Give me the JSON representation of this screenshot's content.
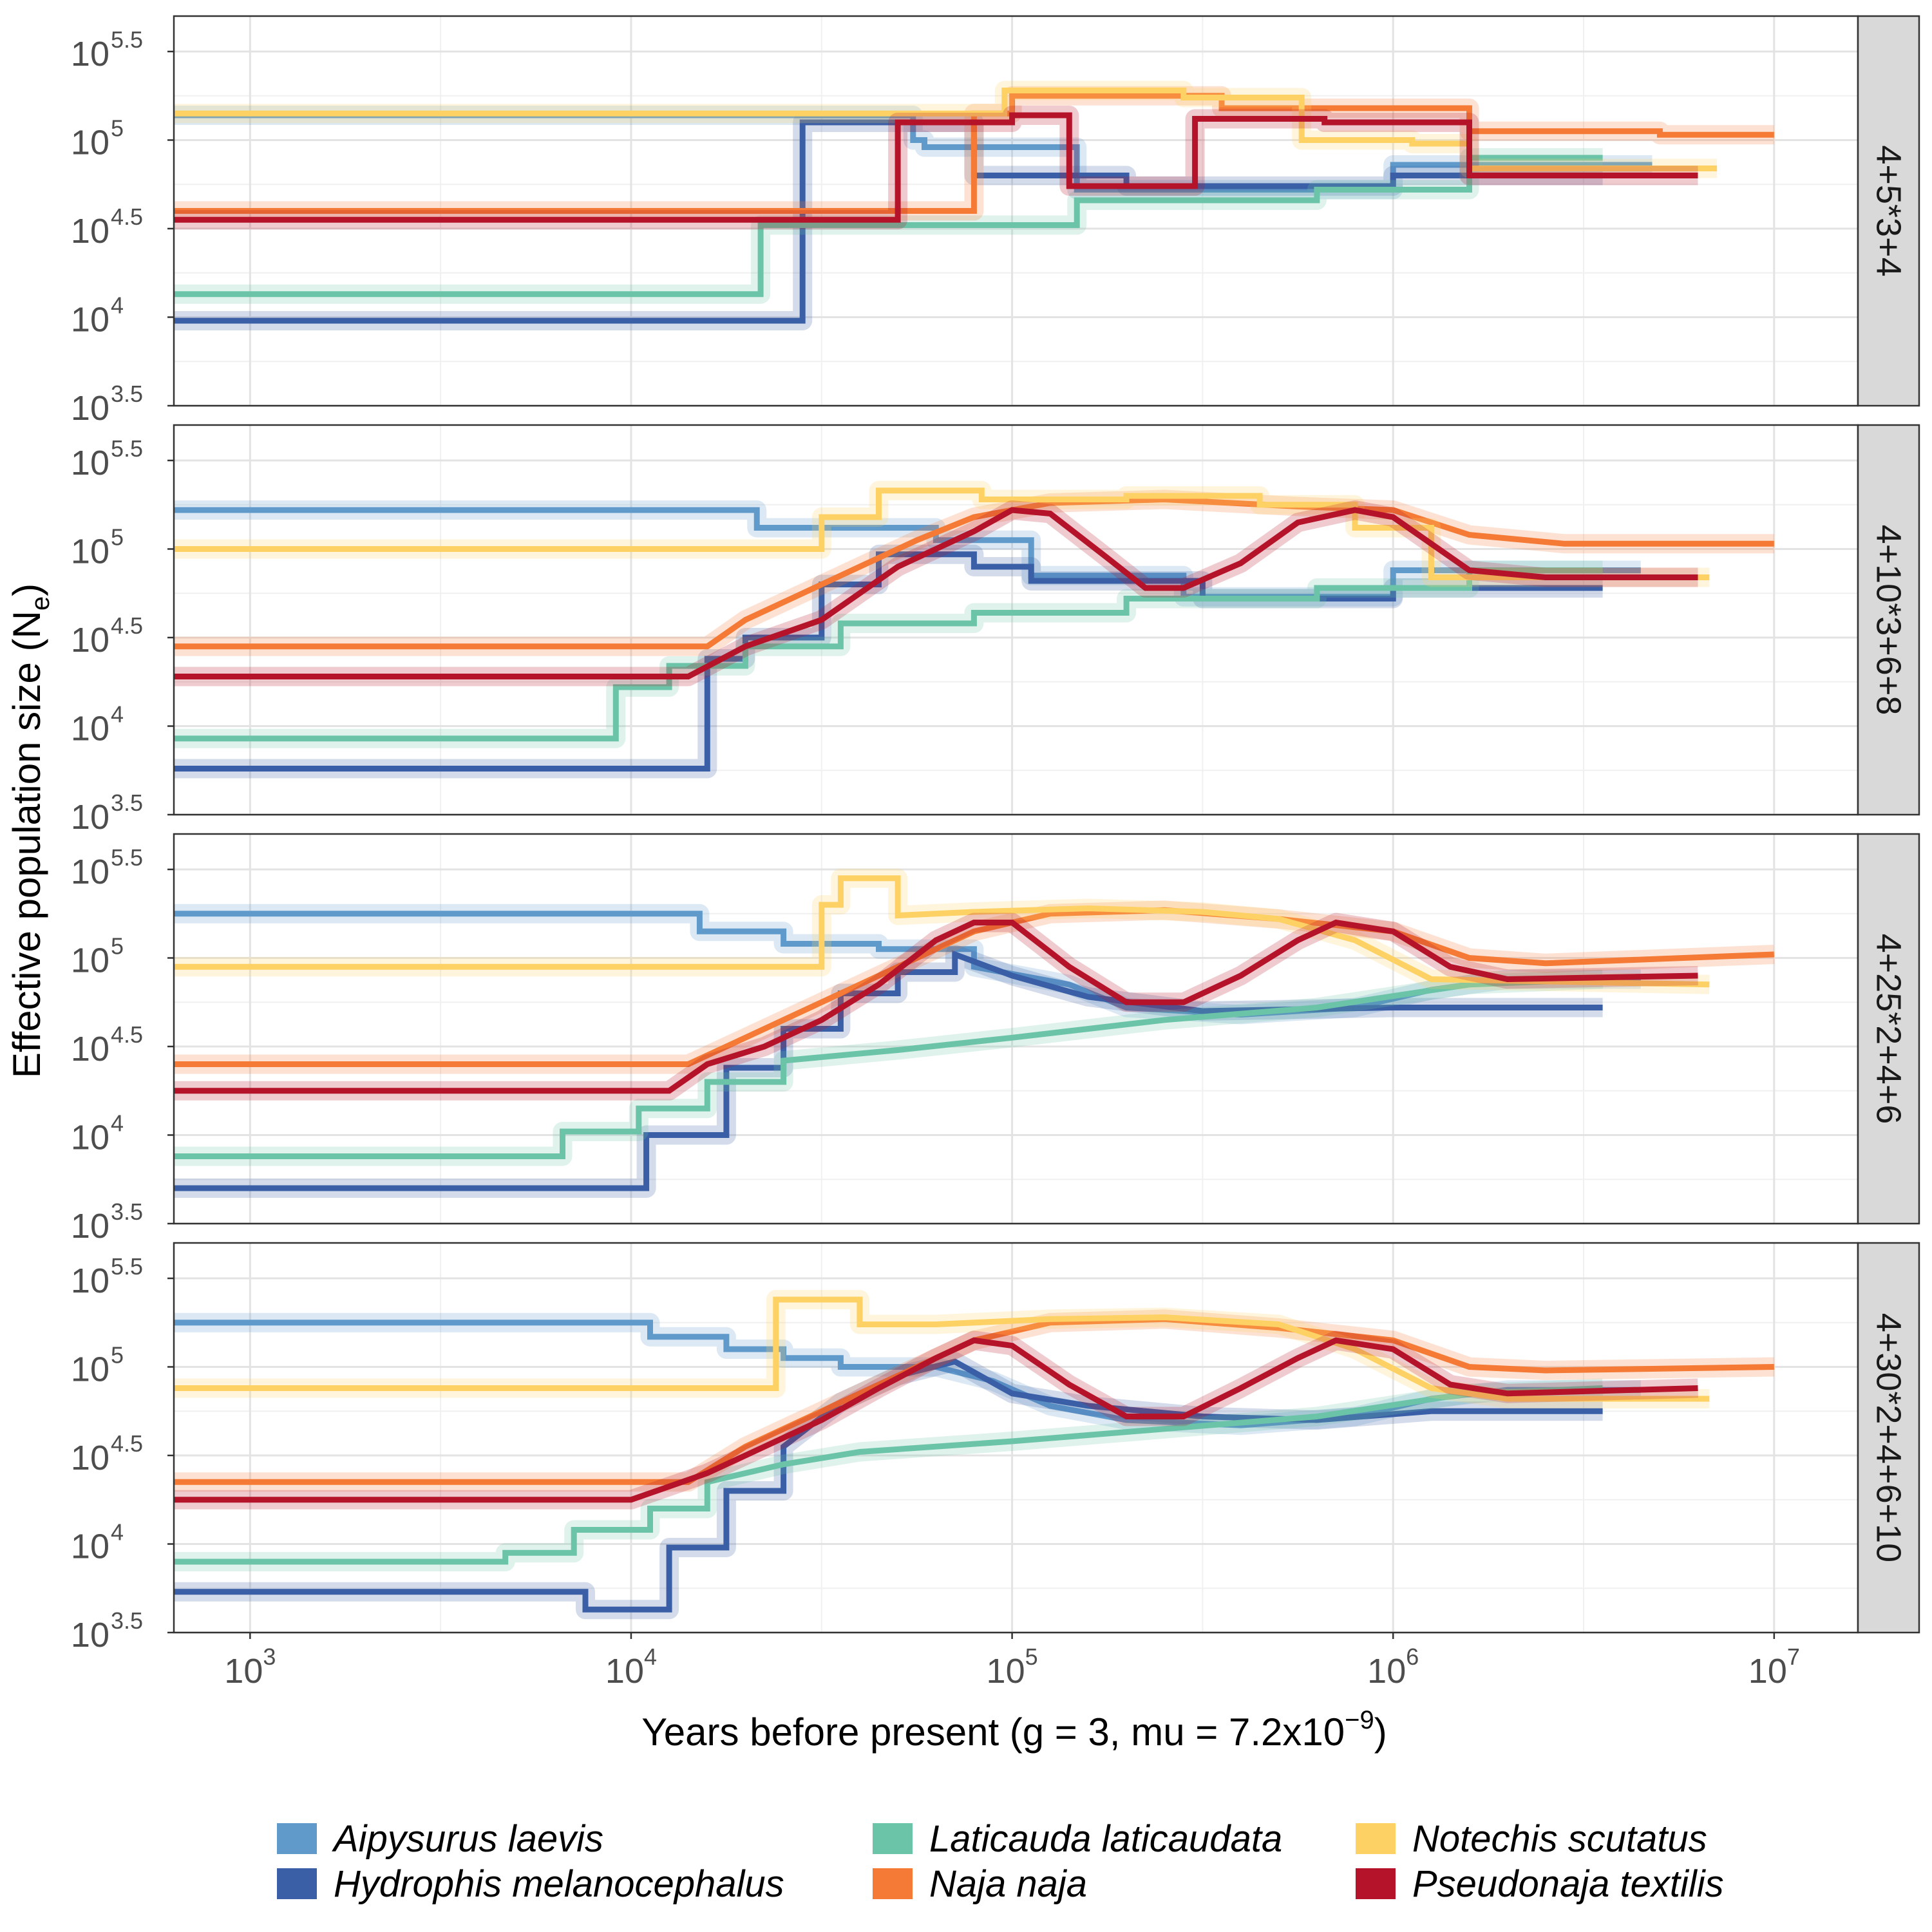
{
  "figure": {
    "ylabel": "Effective population size (N",
    "ylabel_sub": "e",
    "ylabel_close": ")",
    "xlabel": "Years before present (g = 3, mu = 7.2x10",
    "xlabel_sup": "−9",
    "xlabel_close": ")"
  },
  "axes": {
    "x_log_range": [
      2.8,
      7.22
    ],
    "y_log_range": [
      3.5,
      5.7
    ],
    "x_ticks": [
      {
        "base": "10",
        "exp": "3",
        "value": 3
      },
      {
        "base": "10",
        "exp": "4",
        "value": 4
      },
      {
        "base": "10",
        "exp": "5",
        "value": 5
      },
      {
        "base": "10",
        "exp": "6",
        "value": 6
      },
      {
        "base": "10",
        "exp": "7",
        "value": 7
      }
    ],
    "y_ticks": [
      {
        "base": "10",
        "exp": "3.5",
        "value": 3.5
      },
      {
        "base": "10",
        "exp": "4",
        "value": 4
      },
      {
        "base": "10",
        "exp": "4.5",
        "value": 4.5
      },
      {
        "base": "10",
        "exp": "5",
        "value": 5
      },
      {
        "base": "10",
        "exp": "5.5",
        "value": 5.5
      }
    ]
  },
  "legend": {
    "placement": "bottom",
    "items": [
      {
        "label": "Aipysurus laevis",
        "color": "#5f9acb"
      },
      {
        "label": "Hydrophis melanocephalus",
        "color": "#3a5fa6"
      },
      {
        "label": "Laticauda laticaudata",
        "color": "#6cc4a8"
      },
      {
        "label": "Naja naja",
        "color": "#f47a35"
      },
      {
        "label": "Notechis scutatus",
        "color": "#fdd163"
      },
      {
        "label": "Pseudonaja textilis",
        "color": "#b5132a"
      }
    ]
  },
  "chart_data": [
    {
      "type": "line",
      "facet": "4+5*3+4",
      "x_scale": "log",
      "y_scale": "log",
      "series": [
        {
          "name": "Aipysurus laevis",
          "color": "#5f9acb",
          "x": [
            2.8,
            4.74,
            4.74,
            4.77,
            4.77,
            5.17,
            5.17,
            6.0,
            6.0,
            6.68
          ],
          "y": [
            5.14,
            5.14,
            5.0,
            5.0,
            4.96,
            4.96,
            4.72,
            4.72,
            4.86,
            4.86
          ]
        },
        {
          "name": "Hydrophis melanocephalus",
          "color": "#3a5fa6",
          "x": [
            2.8,
            4.45,
            4.45,
            4.9,
            4.9,
            5.3,
            5.3,
            6.0,
            6.0,
            6.55
          ],
          "y": [
            3.98,
            3.98,
            5.1,
            5.1,
            4.8,
            4.8,
            4.74,
            4.74,
            4.8,
            4.8
          ]
        },
        {
          "name": "Laticauda laticaudata",
          "color": "#6cc4a8",
          "x": [
            2.8,
            4.34,
            4.34,
            5.17,
            5.17,
            5.8,
            5.8,
            6.2,
            6.2,
            6.55
          ],
          "y": [
            4.13,
            4.13,
            4.52,
            4.52,
            4.66,
            4.66,
            4.72,
            4.72,
            4.9,
            4.9
          ]
        },
        {
          "name": "Naja naja",
          "color": "#f47a35",
          "x": [
            2.8,
            4.9,
            4.9,
            5.0,
            5.0,
            5.55,
            5.55,
            6.2,
            6.2,
            6.7,
            6.7,
            7.0
          ],
          "y": [
            4.6,
            4.6,
            5.15,
            5.15,
            5.25,
            5.25,
            5.18,
            5.18,
            5.05,
            5.05,
            5.03,
            5.03
          ]
        },
        {
          "name": "Notechis scutatus",
          "color": "#fdd163",
          "x": [
            2.8,
            4.98,
            4.98,
            5.45,
            5.45,
            5.76,
            5.76,
            6.05,
            6.05,
            6.2,
            6.2,
            6.85
          ],
          "y": [
            5.15,
            5.15,
            5.28,
            5.28,
            5.24,
            5.24,
            5.0,
            5.0,
            4.98,
            4.98,
            4.84,
            4.84
          ]
        },
        {
          "name": "Pseudonaja textilis",
          "color": "#b5132a",
          "x": [
            2.8,
            4.7,
            4.7,
            5.0,
            5.0,
            5.15,
            5.15,
            5.48,
            5.48,
            5.82,
            5.82,
            6.2,
            6.2,
            6.8
          ],
          "y": [
            4.55,
            4.55,
            5.1,
            5.1,
            5.14,
            5.14,
            4.74,
            4.74,
            5.12,
            5.12,
            5.1,
            5.1,
            4.8,
            4.8
          ]
        }
      ]
    },
    {
      "type": "line",
      "facet": "4+10*3+6+8",
      "x_scale": "log",
      "y_scale": "log",
      "series": [
        {
          "name": "Aipysurus laevis",
          "color": "#5f9acb",
          "x": [
            2.8,
            4.33,
            4.33,
            4.8,
            4.8,
            5.05,
            5.05,
            5.45,
            5.45,
            6.0,
            6.0,
            6.65
          ],
          "y": [
            5.22,
            5.22,
            5.12,
            5.12,
            5.05,
            5.05,
            4.85,
            4.85,
            4.73,
            4.73,
            4.88,
            4.88
          ]
        },
        {
          "name": "Hydrophis melanocephalus",
          "color": "#3a5fa6",
          "x": [
            2.8,
            4.2,
            4.2,
            4.3,
            4.3,
            4.5,
            4.5,
            4.65,
            4.65,
            4.9,
            4.9,
            5.05,
            5.05,
            5.5,
            5.5,
            6.0,
            6.0,
            6.55
          ],
          "y": [
            3.76,
            3.76,
            4.38,
            4.38,
            4.5,
            4.5,
            4.8,
            4.8,
            4.97,
            4.97,
            4.9,
            4.9,
            4.82,
            4.82,
            4.72,
            4.72,
            4.78,
            4.78
          ]
        },
        {
          "name": "Laticauda laticaudata",
          "color": "#6cc4a8",
          "x": [
            2.8,
            3.96,
            3.96,
            4.1,
            4.1,
            4.3,
            4.3,
            4.55,
            4.55,
            4.9,
            4.9,
            5.3,
            5.3,
            5.8,
            5.8,
            6.2,
            6.2,
            6.55
          ],
          "y": [
            3.93,
            3.93,
            4.22,
            4.22,
            4.34,
            4.34,
            4.45,
            4.45,
            4.58,
            4.58,
            4.64,
            4.64,
            4.72,
            4.72,
            4.78,
            4.78,
            4.88,
            4.88
          ]
        },
        {
          "name": "Naja naja",
          "color": "#f47a35",
          "x": [
            2.8,
            4.2,
            4.3,
            4.45,
            4.6,
            4.75,
            4.9,
            5.1,
            5.4,
            5.75,
            6.0,
            6.2,
            6.45,
            7.0
          ],
          "y": [
            4.45,
            4.45,
            4.6,
            4.75,
            4.9,
            5.05,
            5.18,
            5.26,
            5.28,
            5.24,
            5.22,
            5.08,
            5.03,
            5.03
          ]
        },
        {
          "name": "Notechis scutatus",
          "color": "#fdd163",
          "x": [
            2.8,
            4.5,
            4.5,
            4.65,
            4.65,
            4.92,
            4.92,
            5.3,
            5.3,
            5.65,
            5.65,
            5.9,
            5.9,
            6.1,
            6.1,
            6.83
          ],
          "y": [
            5.0,
            5.0,
            5.18,
            5.18,
            5.33,
            5.33,
            5.28,
            5.28,
            5.3,
            5.3,
            5.25,
            5.25,
            5.12,
            5.12,
            4.84,
            4.84
          ]
        },
        {
          "name": "Pseudonaja textilis",
          "color": "#b5132a",
          "x": [
            2.8,
            4.15,
            4.3,
            4.5,
            4.7,
            4.9,
            5.0,
            5.1,
            5.25,
            5.35,
            5.45,
            5.6,
            5.75,
            5.9,
            6.0,
            6.2,
            6.4,
            6.8
          ],
          "y": [
            4.28,
            4.28,
            4.45,
            4.6,
            4.9,
            5.1,
            5.22,
            5.2,
            4.95,
            4.78,
            4.78,
            4.92,
            5.15,
            5.22,
            5.18,
            4.88,
            4.84,
            4.84
          ]
        }
      ]
    },
    {
      "type": "line",
      "facet": "4+25*2+4+6",
      "x_scale": "log",
      "y_scale": "log",
      "series": [
        {
          "name": "Aipysurus laevis",
          "color": "#5f9acb",
          "x": [
            2.8,
            4.18,
            4.18,
            4.4,
            4.4,
            4.65,
            4.65,
            4.9,
            4.9,
            5.15,
            5.3,
            5.6,
            5.9,
            6.1,
            6.3,
            6.65
          ],
          "y": [
            5.25,
            5.25,
            5.15,
            5.15,
            5.08,
            5.08,
            5.05,
            5.05,
            4.95,
            4.85,
            4.72,
            4.68,
            4.72,
            4.82,
            4.88,
            4.88
          ]
        },
        {
          "name": "Hydrophis melanocephalus",
          "color": "#3a5fa6",
          "x": [
            2.8,
            4.04,
            4.04,
            4.25,
            4.25,
            4.4,
            4.4,
            4.55,
            4.55,
            4.7,
            4.7,
            4.85,
            4.85,
            5.0,
            5.2,
            5.5,
            6.0,
            6.55
          ],
          "y": [
            3.7,
            3.7,
            4.0,
            4.0,
            4.38,
            4.38,
            4.6,
            4.6,
            4.8,
            4.8,
            4.92,
            4.92,
            5.02,
            4.9,
            4.78,
            4.7,
            4.72,
            4.72
          ]
        },
        {
          "name": "Laticauda laticaudata",
          "color": "#6cc4a8",
          "x": [
            2.8,
            3.82,
            3.82,
            4.02,
            4.02,
            4.2,
            4.2,
            4.4,
            4.4,
            4.7,
            5.0,
            5.4,
            5.8,
            6.2,
            6.55
          ],
          "y": [
            3.88,
            3.88,
            4.02,
            4.02,
            4.15,
            4.15,
            4.3,
            4.3,
            4.42,
            4.48,
            4.55,
            4.65,
            4.72,
            4.85,
            4.88
          ]
        },
        {
          "name": "Naja naja",
          "color": "#f47a35",
          "x": [
            2.8,
            4.15,
            4.3,
            4.45,
            4.6,
            4.75,
            4.9,
            5.1,
            5.4,
            5.7,
            6.0,
            6.2,
            6.4,
            7.0
          ],
          "y": [
            4.4,
            4.4,
            4.55,
            4.7,
            4.85,
            5.0,
            5.15,
            5.25,
            5.27,
            5.22,
            5.15,
            5.0,
            4.97,
            5.02
          ]
        },
        {
          "name": "Notechis scutatus",
          "color": "#fdd163",
          "x": [
            2.8,
            4.5,
            4.5,
            4.55,
            4.55,
            4.7,
            4.7,
            4.9,
            5.2,
            5.5,
            5.7,
            5.9,
            6.1,
            6.83
          ],
          "y": [
            4.95,
            4.95,
            5.3,
            5.3,
            5.45,
            5.45,
            5.24,
            5.26,
            5.28,
            5.26,
            5.22,
            5.1,
            4.88,
            4.85
          ]
        },
        {
          "name": "Pseudonaja textilis",
          "color": "#b5132a",
          "x": [
            2.8,
            4.1,
            4.2,
            4.35,
            4.5,
            4.65,
            4.8,
            4.9,
            5.0,
            5.15,
            5.3,
            5.45,
            5.6,
            5.75,
            5.85,
            6.0,
            6.15,
            6.3,
            6.8
          ],
          "y": [
            4.25,
            4.25,
            4.4,
            4.5,
            4.65,
            4.85,
            5.1,
            5.2,
            5.2,
            4.95,
            4.75,
            4.75,
            4.9,
            5.1,
            5.2,
            5.15,
            4.95,
            4.88,
            4.9
          ]
        }
      ]
    },
    {
      "type": "line",
      "facet": "4+30*2+4+6+10",
      "x_scale": "log",
      "y_scale": "log",
      "series": [
        {
          "name": "Aipysurus laevis",
          "color": "#5f9acb",
          "x": [
            2.8,
            4.05,
            4.05,
            4.25,
            4.25,
            4.4,
            4.4,
            4.55,
            4.55,
            4.8,
            4.95,
            5.1,
            5.3,
            5.6,
            5.9,
            6.1,
            6.3,
            6.65
          ],
          "y": [
            5.25,
            5.25,
            5.17,
            5.17,
            5.1,
            5.1,
            5.05,
            5.05,
            5.0,
            5.0,
            4.92,
            4.78,
            4.7,
            4.67,
            4.72,
            4.82,
            4.87,
            4.87
          ]
        },
        {
          "name": "Hydrophis melanocephalus",
          "color": "#3a5fa6",
          "x": [
            2.8,
            3.88,
            3.88,
            4.1,
            4.1,
            4.25,
            4.25,
            4.4,
            4.4,
            4.55,
            4.7,
            4.85,
            5.0,
            5.2,
            5.5,
            5.8,
            6.1,
            6.55
          ],
          "y": [
            3.73,
            3.73,
            3.63,
            3.63,
            3.98,
            3.98,
            4.3,
            4.3,
            4.55,
            4.8,
            4.95,
            5.03,
            4.85,
            4.78,
            4.72,
            4.7,
            4.75,
            4.75
          ]
        },
        {
          "name": "Laticauda laticaudata",
          "color": "#6cc4a8",
          "x": [
            2.8,
            3.67,
            3.67,
            3.85,
            3.85,
            4.05,
            4.05,
            4.2,
            4.2,
            4.4,
            4.6,
            5.0,
            5.4,
            5.8,
            6.2,
            6.55
          ],
          "y": [
            3.9,
            3.9,
            3.95,
            3.95,
            4.08,
            4.08,
            4.2,
            4.2,
            4.35,
            4.45,
            4.52,
            4.58,
            4.65,
            4.72,
            4.85,
            4.88
          ]
        },
        {
          "name": "Naja naja",
          "color": "#f47a35",
          "x": [
            2.8,
            4.15,
            4.3,
            4.45,
            4.6,
            4.75,
            4.9,
            5.1,
            5.4,
            5.7,
            6.0,
            6.2,
            6.4,
            7.0
          ],
          "y": [
            4.35,
            4.35,
            4.55,
            4.7,
            4.85,
            5.0,
            5.15,
            5.25,
            5.27,
            5.22,
            5.15,
            5.0,
            4.98,
            5.0
          ]
        },
        {
          "name": "Notechis scutatus",
          "color": "#fdd163",
          "x": [
            2.8,
            4.38,
            4.38,
            4.6,
            4.6,
            4.8,
            5.1,
            5.4,
            5.7,
            5.9,
            6.1,
            6.3,
            6.83
          ],
          "y": [
            4.88,
            4.88,
            5.38,
            5.38,
            5.24,
            5.24,
            5.27,
            5.28,
            5.24,
            5.1,
            4.88,
            4.82,
            4.82
          ]
        },
        {
          "name": "Pseudonaja textilis",
          "color": "#b5132a",
          "x": [
            2.8,
            4.0,
            4.2,
            4.35,
            4.5,
            4.65,
            4.8,
            4.9,
            5.0,
            5.15,
            5.3,
            5.45,
            5.6,
            5.75,
            5.85,
            6.0,
            6.15,
            6.3,
            6.8
          ],
          "y": [
            4.25,
            4.25,
            4.4,
            4.55,
            4.7,
            4.88,
            5.05,
            5.15,
            5.12,
            4.9,
            4.72,
            4.72,
            4.88,
            5.05,
            5.15,
            5.1,
            4.9,
            4.85,
            4.88
          ]
        }
      ]
    }
  ]
}
